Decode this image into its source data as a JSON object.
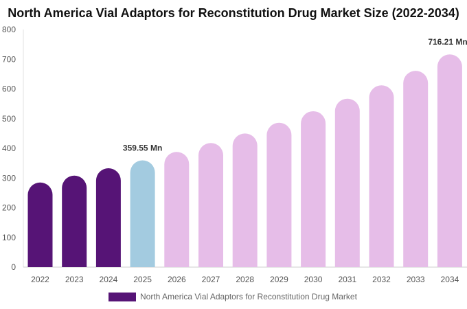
{
  "title": "North America Vial Adaptors for Reconstitution Drug Market Size (2022-2034)",
  "legend_label": "North America Vial Adaptors for Reconstitution Drug Market",
  "colors": {
    "historical": "#561476",
    "base_year": "#a3cbe0",
    "forecast": "#e6bde8"
  },
  "chart_data": {
    "type": "bar",
    "title": "North America Vial Adaptors for Reconstitution Drug Market Size (2022-2034)",
    "xlabel": "",
    "ylabel": "",
    "categories": [
      "2022",
      "2023",
      "2024",
      "2025",
      "2026",
      "2027",
      "2028",
      "2029",
      "2030",
      "2031",
      "2032",
      "2033",
      "2034"
    ],
    "series": [
      {
        "name": "North America Vial Adaptors for Reconstitution Drug Market",
        "values": [
          285,
          308,
          333,
          359.55,
          388,
          418,
          450,
          486,
          525,
          567,
          612,
          661,
          716.21
        ]
      }
    ],
    "bar_kind": [
      "historical",
      "historical",
      "historical",
      "base_year",
      "forecast",
      "forecast",
      "forecast",
      "forecast",
      "forecast",
      "forecast",
      "forecast",
      "forecast",
      "forecast"
    ],
    "data_labels": {
      "3": "359.55 Mn",
      "12": "716.21 Mn"
    },
    "ylim": [
      0,
      800
    ],
    "yticks": [
      0,
      100,
      200,
      300,
      400,
      500,
      600,
      700,
      800
    ],
    "grid": false,
    "legend_position": "bottom"
  }
}
